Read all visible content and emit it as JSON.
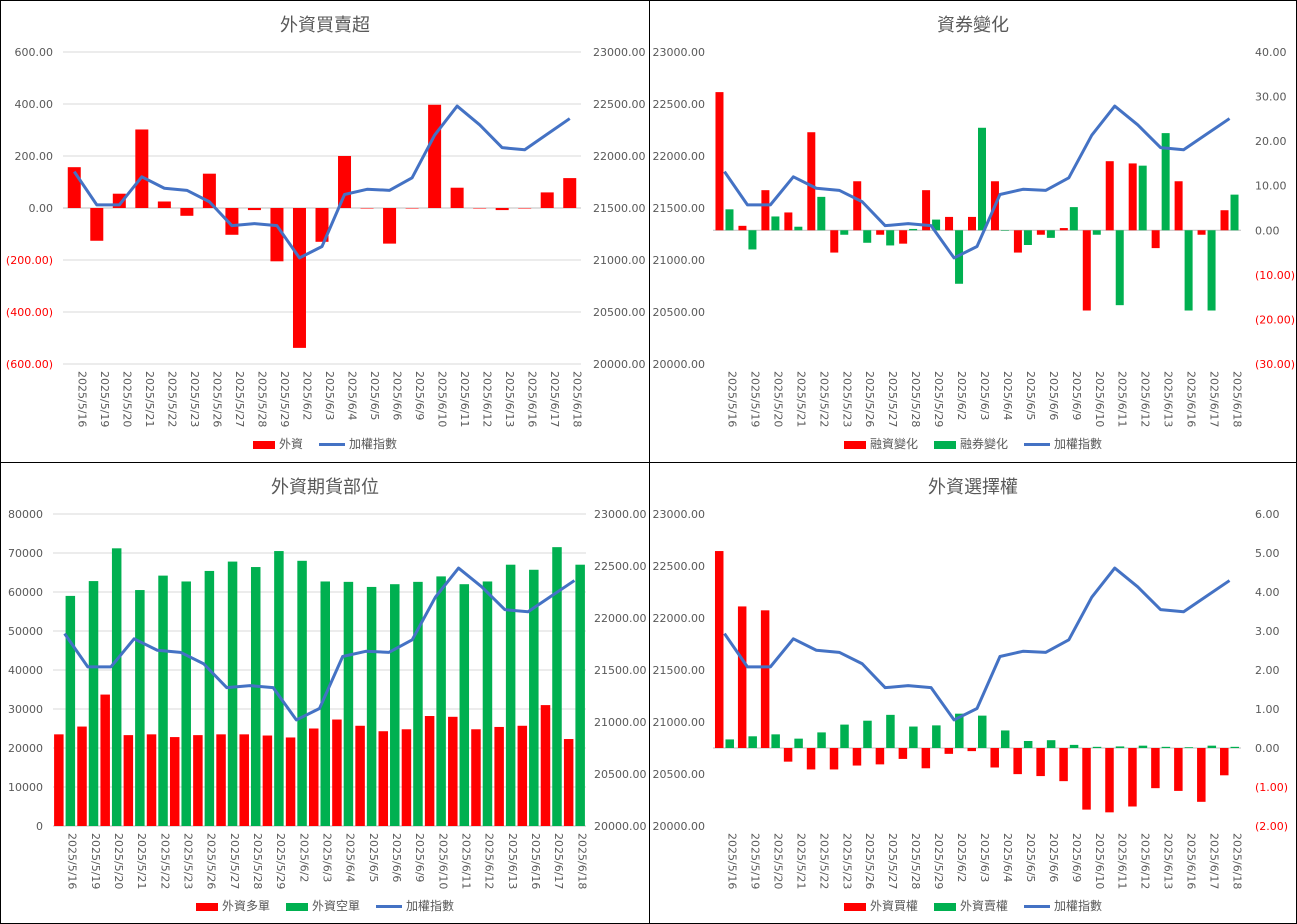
{
  "colors": {
    "red": "#FF0000",
    "green": "#00B050",
    "blue": "#4472C4",
    "grid": "#D9D9D9",
    "text": "#595959"
  },
  "chart_data": [
    {
      "type": "bar",
      "title": "外資買賣超",
      "categories": [
        "2025/5/16",
        "2025/5/19",
        "2025/5/20",
        "2025/5/21",
        "2025/5/22",
        "2025/5/23",
        "2025/5/26",
        "2025/5/27",
        "2025/5/28",
        "2025/5/29",
        "2025/6/2",
        "2025/6/3",
        "2025/6/4",
        "2025/6/5",
        "2025/6/6",
        "2025/6/9",
        "2025/6/10",
        "2025/6/11",
        "2025/6/12",
        "2025/6/13",
        "2025/6/16",
        "2025/6/17",
        "2025/6/18"
      ],
      "series": [
        {
          "name": "外資",
          "type": "bar",
          "axis": "left",
          "color": "#FF0000",
          "values": [
            157,
            -126,
            55,
            302,
            25,
            -30,
            132,
            -103,
            -8,
            -205,
            -538,
            -130,
            200,
            0,
            -137,
            0,
            397,
            78,
            0,
            -8,
            0,
            60,
            115
          ]
        },
        {
          "name": "加權指數",
          "type": "line",
          "axis": "right",
          "color": "#4472C4",
          "values": [
            21850,
            21530,
            21530,
            21800,
            21690,
            21670,
            21560,
            21330,
            21350,
            21330,
            21020,
            21130,
            21630,
            21680,
            21670,
            21790,
            22200,
            22480,
            22300,
            22080,
            22060,
            22210,
            22360
          ]
        }
      ],
      "y_left": {
        "min": -600,
        "max": 600,
        "step": 200,
        "labels": [
          "(600.00)",
          "(400.00)",
          "(200.00)",
          "0.00",
          "200.00",
          "400.00",
          "600.00"
        ]
      },
      "y_right": {
        "min": 20000,
        "max": 23000,
        "step": 500,
        "labels": [
          "20000.00",
          "20500.00",
          "21000.00",
          "21500.00",
          "22000.00",
          "22500.00",
          "23000.00"
        ]
      },
      "grid": true,
      "legend": "bottom"
    },
    {
      "type": "bar",
      "title": "資券變化",
      "categories": [
        "2025/5/16",
        "2025/5/19",
        "2025/5/20",
        "2025/5/21",
        "2025/5/22",
        "2025/5/23",
        "2025/5/26",
        "2025/5/27",
        "2025/5/28",
        "2025/5/29",
        "2025/6/2",
        "2025/6/3",
        "2025/6/4",
        "2025/6/5",
        "2025/6/6",
        "2025/6/9",
        "2025/6/10",
        "2025/6/11",
        "2025/6/12",
        "2025/6/13",
        "2025/6/16",
        "2025/6/17",
        "2025/6/18"
      ],
      "series": [
        {
          "name": "融資變化",
          "type": "bar",
          "axis": "right",
          "color": "#FF0000",
          "values": [
            31,
            1,
            9,
            4,
            22,
            -5,
            11,
            -1,
            -3,
            9,
            3,
            3,
            11,
            -5,
            -1,
            0.5,
            -18,
            15.5,
            15,
            -4,
            11,
            -1,
            4.5
          ]
        },
        {
          "name": "融券變化",
          "type": "bar",
          "axis": "right",
          "color": "#00B050",
          "values": [
            4.7,
            -4.3,
            3.1,
            0.8,
            7.5,
            -1,
            -2.8,
            -3.4,
            0.3,
            2.4,
            -12,
            23,
            0,
            -3.3,
            -1.7,
            5.2,
            -1,
            -16.8,
            14.5,
            21.8,
            -18,
            -18,
            8
          ]
        },
        {
          "name": "加權指數",
          "type": "line",
          "axis": "left",
          "color": "#4472C4",
          "values": [
            21850,
            21530,
            21530,
            21800,
            21690,
            21670,
            21560,
            21330,
            21350,
            21330,
            21020,
            21130,
            21630,
            21680,
            21670,
            21790,
            22200,
            22480,
            22300,
            22080,
            22060,
            22210,
            22360
          ]
        }
      ],
      "y_left": {
        "min": 20000,
        "max": 23000,
        "step": 500,
        "labels": [
          "20000.00",
          "20500.00",
          "21000.00",
          "21500.00",
          "22000.00",
          "22500.00",
          "23000.00"
        ]
      },
      "y_right": {
        "min": -30,
        "max": 40,
        "step": 10,
        "labels": [
          "(30.00)",
          "(20.00)",
          "(10.00)",
          "0.00",
          "10.00",
          "20.00",
          "30.00",
          "40.00"
        ]
      },
      "grid": false,
      "legend": "bottom"
    },
    {
      "type": "bar",
      "title": "外資期貨部位",
      "categories": [
        "2025/5/16",
        "2025/5/19",
        "2025/5/20",
        "2025/5/21",
        "2025/5/22",
        "2025/5/23",
        "2025/5/26",
        "2025/5/27",
        "2025/5/28",
        "2025/5/29",
        "2025/6/2",
        "2025/6/3",
        "2025/6/4",
        "2025/6/5",
        "2025/6/6",
        "2025/6/9",
        "2025/6/10",
        "2025/6/11",
        "2025/6/12",
        "2025/6/13",
        "2025/6/16",
        "2025/6/17",
        "2025/6/18"
      ],
      "series": [
        {
          "name": "外資多單",
          "type": "bar",
          "axis": "left",
          "color": "#FF0000",
          "values": [
            23500,
            25500,
            33700,
            23300,
            23500,
            22800,
            23300,
            23500,
            23500,
            23200,
            22700,
            25000,
            27300,
            25700,
            24300,
            24800,
            28200,
            28000,
            24800,
            25400,
            25700,
            31000,
            22300
          ]
        },
        {
          "name": "外資空單",
          "type": "bar",
          "axis": "left",
          "color": "#00B050",
          "values": [
            59000,
            62800,
            71200,
            60500,
            64200,
            62700,
            65400,
            67800,
            66400,
            70500,
            68000,
            62700,
            62600,
            61300,
            62000,
            62600,
            64000,
            62000,
            62700,
            67000,
            65700,
            71500,
            67000
          ]
        },
        {
          "name": "加權指數",
          "type": "line",
          "axis": "right",
          "color": "#4472C4",
          "values": [
            21850,
            21530,
            21530,
            21800,
            21690,
            21670,
            21560,
            21330,
            21350,
            21330,
            21020,
            21130,
            21630,
            21680,
            21670,
            21790,
            22200,
            22480,
            22300,
            22080,
            22060,
            22210,
            22360
          ]
        }
      ],
      "y_left": {
        "min": 0,
        "max": 80000,
        "step": 10000,
        "labels": [
          "0",
          "10000",
          "20000",
          "30000",
          "40000",
          "50000",
          "60000",
          "70000",
          "80000"
        ]
      },
      "y_right": {
        "min": 20000,
        "max": 23000,
        "step": 500,
        "labels": [
          "20000.00",
          "20500.00",
          "21000.00",
          "21500.00",
          "22000.00",
          "22500.00",
          "23000.00"
        ]
      },
      "grid": true,
      "legend": "bottom"
    },
    {
      "type": "bar",
      "title": "外資選擇權",
      "categories": [
        "2025/5/16",
        "2025/5/19",
        "2025/5/20",
        "2025/5/21",
        "2025/5/22",
        "2025/5/23",
        "2025/5/26",
        "2025/5/27",
        "2025/5/28",
        "2025/5/29",
        "2025/6/2",
        "2025/6/3",
        "2025/6/4",
        "2025/6/5",
        "2025/6/6",
        "2025/6/9",
        "2025/6/10",
        "2025/6/11",
        "2025/6/12",
        "2025/6/13",
        "2025/6/16",
        "2025/6/17",
        "2025/6/18"
      ],
      "series": [
        {
          "name": "外資買權",
          "type": "bar",
          "axis": "right",
          "color": "#FF0000",
          "values": [
            5.05,
            3.63,
            3.53,
            -0.35,
            -0.55,
            -0.55,
            -0.45,
            -0.42,
            -0.28,
            -0.52,
            -0.15,
            -0.08,
            -0.5,
            -0.67,
            -0.72,
            -0.85,
            -1.58,
            -1.65,
            -1.5,
            -1.03,
            -1.1,
            -1.38,
            -0.7
          ]
        },
        {
          "name": "外資賣權",
          "type": "bar",
          "axis": "right",
          "color": "#00B050",
          "values": [
            0.22,
            0.3,
            0.35,
            0.24,
            0.4,
            0.6,
            0.7,
            0.85,
            0.55,
            0.58,
            0.88,
            0.83,
            0.45,
            0.18,
            0.2,
            0.08,
            0.03,
            0.04,
            0.06,
            0.03,
            0.02,
            0.06,
            0.03
          ]
        },
        {
          "name": "加權指數",
          "type": "line",
          "axis": "left",
          "color": "#4472C4",
          "values": [
            21850,
            21530,
            21530,
            21800,
            21690,
            21670,
            21560,
            21330,
            21350,
            21330,
            21020,
            21130,
            21630,
            21680,
            21670,
            21790,
            22200,
            22480,
            22300,
            22080,
            22060,
            22210,
            22360
          ]
        }
      ],
      "y_left": {
        "min": 20000,
        "max": 23000,
        "step": 500,
        "labels": [
          "20000.00",
          "20500.00",
          "21000.00",
          "21500.00",
          "22000.00",
          "22500.00",
          "23000.00"
        ]
      },
      "y_right": {
        "min": -2,
        "max": 6,
        "step": 1,
        "labels": [
          "(2.00)",
          "(1.00)",
          "0.00",
          "1.00",
          "2.00",
          "3.00",
          "4.00",
          "5.00",
          "6.00"
        ]
      },
      "grid": false,
      "legend": "bottom"
    }
  ]
}
